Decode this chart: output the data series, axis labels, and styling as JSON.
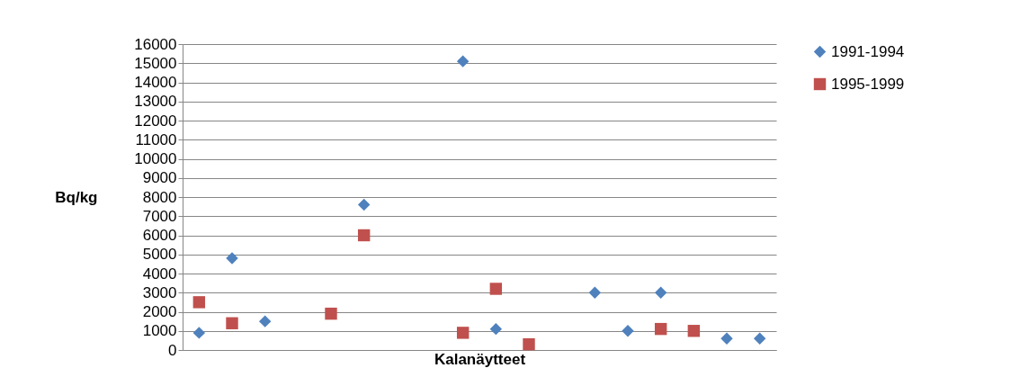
{
  "chart_data": {
    "type": "scatter",
    "xlabel": "Kalanäytteet",
    "ylabel": "Bq/kg",
    "categories": [
      null,
      null,
      null,
      null,
      null,
      null,
      null,
      null,
      null,
      null,
      null,
      null,
      null,
      null,
      null,
      null,
      null,
      null
    ],
    "series": [
      {
        "name": "1991-1994",
        "color": "#4f81bd",
        "marker": "diamond",
        "values": [
          900,
          4800,
          1500,
          null,
          null,
          7600,
          null,
          null,
          15100,
          1100,
          null,
          null,
          3000,
          1000,
          3000,
          null,
          600,
          600
        ]
      },
      {
        "name": "1995-1999",
        "color": "#c0504d",
        "marker": "square",
        "values": [
          2500,
          1400,
          null,
          null,
          1900,
          6000,
          null,
          null,
          900,
          3200,
          300,
          null,
          null,
          null,
          1100,
          1000,
          null,
          null
        ]
      }
    ],
    "ylim": [
      0,
      16000
    ],
    "yticks": [
      0,
      1000,
      2000,
      3000,
      4000,
      5000,
      6000,
      7000,
      8000,
      9000,
      10000,
      11000,
      12000,
      13000,
      14000,
      15000,
      16000
    ],
    "grid": "y",
    "legend": "right",
    "tick_labels": "y"
  }
}
